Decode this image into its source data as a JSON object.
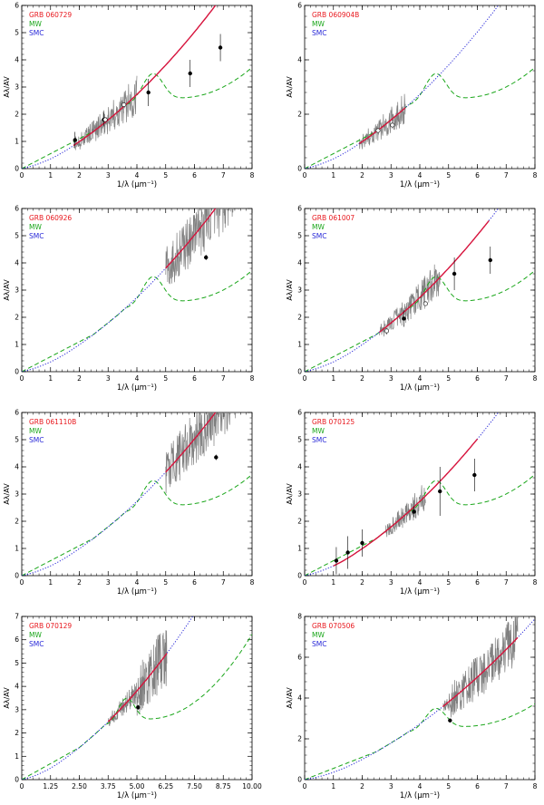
{
  "colors": {
    "grb": "#e8181e",
    "mw": "#19a619",
    "smc": "#2828d8",
    "fit": "#d8143c",
    "spectrum": "#808080",
    "point": "#000000"
  },
  "legend": {
    "mw": "MW",
    "smc": "SMC"
  },
  "chart_data": [
    {
      "type": "line",
      "title": "GRB 060729",
      "xlabel": "1/λ (μm⁻¹)",
      "ylabel": "Aλ/AV",
      "xlim": [
        0,
        8
      ],
      "ylim": [
        0,
        6
      ],
      "xticks": [
        "0",
        "1",
        "2",
        "3",
        "4",
        "5",
        "6",
        "7",
        "8"
      ],
      "yticks": [
        "0",
        "1",
        "2",
        "3",
        "4",
        "5",
        "6"
      ],
      "spectrum_x": [
        1.8,
        4.0
      ],
      "fit_x": [
        1.8,
        7.0
      ],
      "points": [
        [
          1.85,
          1.05,
          0.3
        ],
        [
          2.85,
          1.8,
          0.25
        ],
        [
          4.4,
          2.8,
          0.5
        ],
        [
          5.85,
          3.5,
          0.5
        ],
        [
          6.9,
          4.45,
          0.5
        ]
      ],
      "open_points": [
        [
          2.9,
          1.8
        ],
        [
          3.55,
          2.35
        ]
      ]
    },
    {
      "type": "line",
      "title": "GRB 060904B",
      "xlabel": "1/λ (μm⁻¹)",
      "ylabel": "Aλ/AV",
      "xlim": [
        0,
        8
      ],
      "ylim": [
        0,
        6
      ],
      "xticks": [
        "0",
        "1",
        "2",
        "3",
        "4",
        "5",
        "6",
        "7",
        "8"
      ],
      "yticks": [
        "0",
        "2",
        "4",
        "6"
      ],
      "spectrum_x": [
        1.9,
        3.5
      ],
      "fit_x": [
        1.9,
        3.5
      ],
      "points": [],
      "open_points": [
        [
          2.55,
          1.4
        ],
        [
          3.05,
          1.6
        ]
      ]
    },
    {
      "type": "line",
      "title": "GRB 060926",
      "xlabel": "1/λ (μm⁻¹)",
      "ylabel": "Aλ/AV",
      "xlim": [
        0,
        8
      ],
      "ylim": [
        0,
        6
      ],
      "xticks": [
        "0",
        "1",
        "2",
        "3",
        "4",
        "5",
        "6",
        "7",
        "8"
      ],
      "yticks": [
        "0",
        "1",
        "2",
        "3",
        "4",
        "5",
        "6"
      ],
      "spectrum_x": [
        5.0,
        7.9
      ],
      "fit_x": [
        5.0,
        8.0
      ],
      "points": [
        [
          6.4,
          4.2,
          0.1
        ]
      ],
      "open_points": []
    },
    {
      "type": "line",
      "title": "GRB 061007",
      "xlabel": "1/λ (μm⁻¹)",
      "ylabel": "Aλ/AV",
      "xlim": [
        0,
        8
      ],
      "ylim": [
        0,
        6
      ],
      "xticks": [
        "0",
        "1",
        "2",
        "3",
        "4",
        "5",
        "6",
        "7",
        "8"
      ],
      "yticks": [
        "0",
        "1",
        "2",
        "3",
        "4",
        "5",
        "6"
      ],
      "spectrum_x": [
        2.6,
        4.7
      ],
      "fit_x": [
        2.6,
        6.4
      ],
      "points": [
        [
          3.45,
          1.95,
          0.3
        ],
        [
          5.2,
          3.6,
          0.6
        ],
        [
          6.45,
          4.1,
          0.5
        ]
      ],
      "open_points": [
        [
          2.85,
          1.5
        ],
        [
          4.2,
          2.5
        ]
      ]
    },
    {
      "type": "line",
      "title": "GRB 061110B",
      "xlabel": "1/λ (μm⁻¹)",
      "ylabel": "Aλ/AV",
      "xlim": [
        0,
        8
      ],
      "ylim": [
        0,
        6
      ],
      "xticks": [
        "0",
        "1",
        "2",
        "3",
        "4",
        "5",
        "6",
        "7",
        "8"
      ],
      "yticks": [
        "0",
        "1",
        "2",
        "3",
        "4",
        "5",
        "6"
      ],
      "spectrum_x": [
        5.0,
        7.9
      ],
      "fit_x": [
        5.0,
        8.0
      ],
      "points": [
        [
          6.75,
          4.35,
          0.1
        ]
      ],
      "open_points": []
    },
    {
      "type": "line",
      "title": "GRB 070125",
      "xlabel": "1/λ (μm⁻¹)",
      "ylabel": "Aλ/AV",
      "xlim": [
        0,
        8
      ],
      "ylim": [
        0,
        6
      ],
      "xticks": [
        "0",
        "1",
        "2",
        "3",
        "4",
        "5",
        "6",
        "7",
        "8"
      ],
      "yticks": [
        "0",
        "1",
        "2",
        "3",
        "4",
        "5",
        "6"
      ],
      "spectrum_x": [
        2.8,
        4.2
      ],
      "fit_x": [
        1.0,
        6.0
      ],
      "points": [
        [
          1.1,
          0.55,
          0.5
        ],
        [
          1.5,
          0.85,
          0.6
        ],
        [
          2.0,
          1.2,
          0.5
        ],
        [
          3.8,
          2.35,
          0.2
        ],
        [
          4.7,
          3.1,
          0.9
        ],
        [
          5.9,
          3.7,
          0.6
        ]
      ],
      "open_points": []
    },
    {
      "type": "line",
      "title": "GRB 070129",
      "xlabel": "1/λ (μm⁻¹)",
      "ylabel": "Aλ/AV",
      "xlim": [
        0,
        10
      ],
      "ylim": [
        0,
        7
      ],
      "xticks": [
        "0",
        "1.25",
        "2.50",
        "3.75",
        "5.00",
        "6.25",
        "7.50",
        "8.75",
        "10.00"
      ],
      "yticks": [
        "0",
        "1",
        "2",
        "3",
        "4",
        "5",
        "6",
        "7"
      ],
      "spectrum_x": [
        3.75,
        6.3
      ],
      "fit_x": [
        3.75,
        6.3
      ],
      "points": [
        [
          5.05,
          3.1,
          0.1
        ]
      ],
      "open_points": []
    },
    {
      "type": "line",
      "title": "GRB 070506",
      "xlabel": "1/λ (μm⁻¹)",
      "ylabel": "Aλ/AV",
      "xlim": [
        0,
        8
      ],
      "ylim": [
        0,
        8
      ],
      "xticks": [
        "0",
        "1",
        "2",
        "3",
        "4",
        "5",
        "6",
        "7",
        "8"
      ],
      "yticks": [
        "0",
        "2",
        "4",
        "6",
        "8"
      ],
      "spectrum_x": [
        4.8,
        7.4
      ],
      "fit_x": [
        4.8,
        7.4
      ],
      "points": [
        [
          5.05,
          2.9,
          0.1
        ]
      ],
      "open_points": []
    }
  ]
}
